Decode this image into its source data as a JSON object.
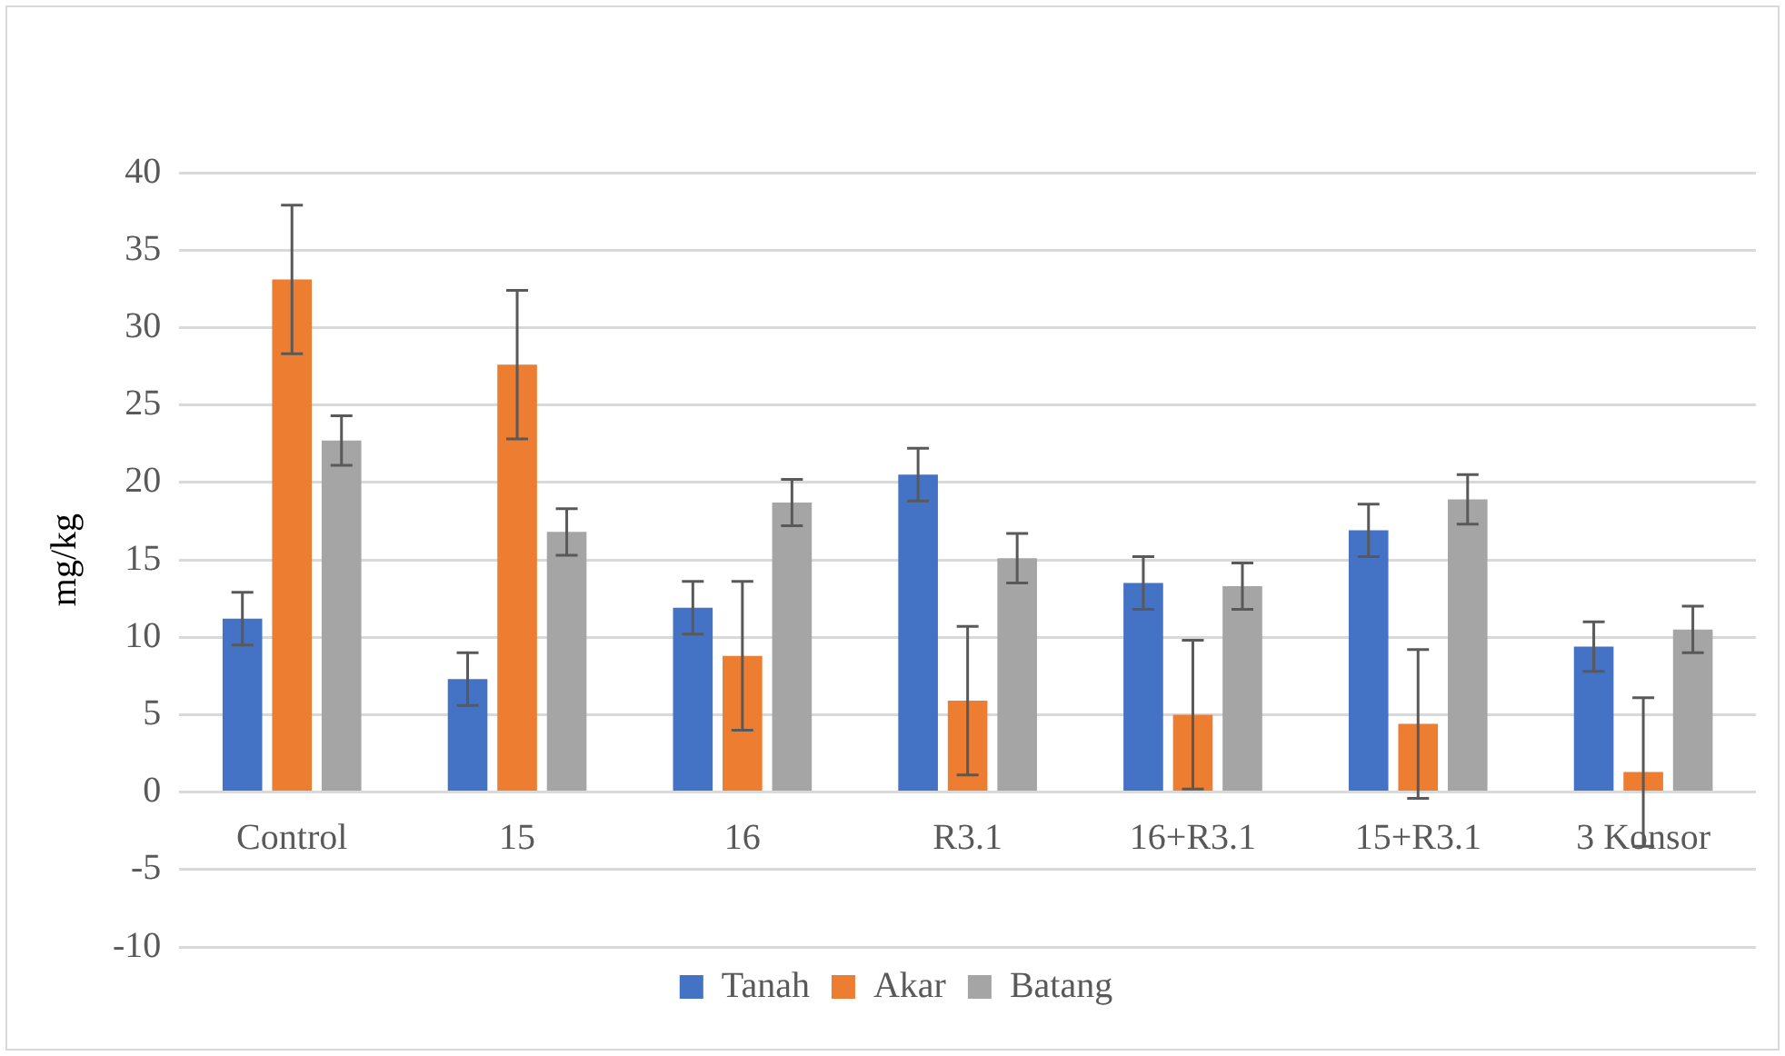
{
  "chart_data": {
    "type": "bar",
    "ylabel": "mg/kg",
    "categories": [
      "Control",
      "15",
      "16",
      "R3.1",
      "16+R3.1",
      "15+R3.1",
      "3 Konsor"
    ],
    "series": [
      {
        "name": "Tanah",
        "color": "#4472c4",
        "values": [
          11.2,
          7.3,
          11.9,
          20.5,
          13.5,
          16.9,
          9.4
        ],
        "errors": [
          1.7,
          1.7,
          1.7,
          1.7,
          1.7,
          1.7,
          1.6
        ]
      },
      {
        "name": "Akar",
        "color": "#ed7d31",
        "values": [
          33.1,
          27.6,
          8.8,
          5.9,
          5.0,
          4.4,
          1.3
        ],
        "errors": [
          4.8,
          4.8,
          4.8,
          4.8,
          4.8,
          4.8,
          4.8
        ]
      },
      {
        "name": "Batang",
        "color": "#a5a5a5",
        "values": [
          22.7,
          16.8,
          18.7,
          15.1,
          13.3,
          18.9,
          10.5
        ],
        "errors": [
          1.6,
          1.5,
          1.5,
          1.6,
          1.5,
          1.6,
          1.5
        ]
      }
    ],
    "ylim": [
      -10,
      40
    ],
    "yticks": [
      -10,
      -5,
      0,
      5,
      10,
      15,
      20,
      25,
      30,
      35,
      40
    ],
    "grid": "y",
    "legend": "bottom"
  }
}
